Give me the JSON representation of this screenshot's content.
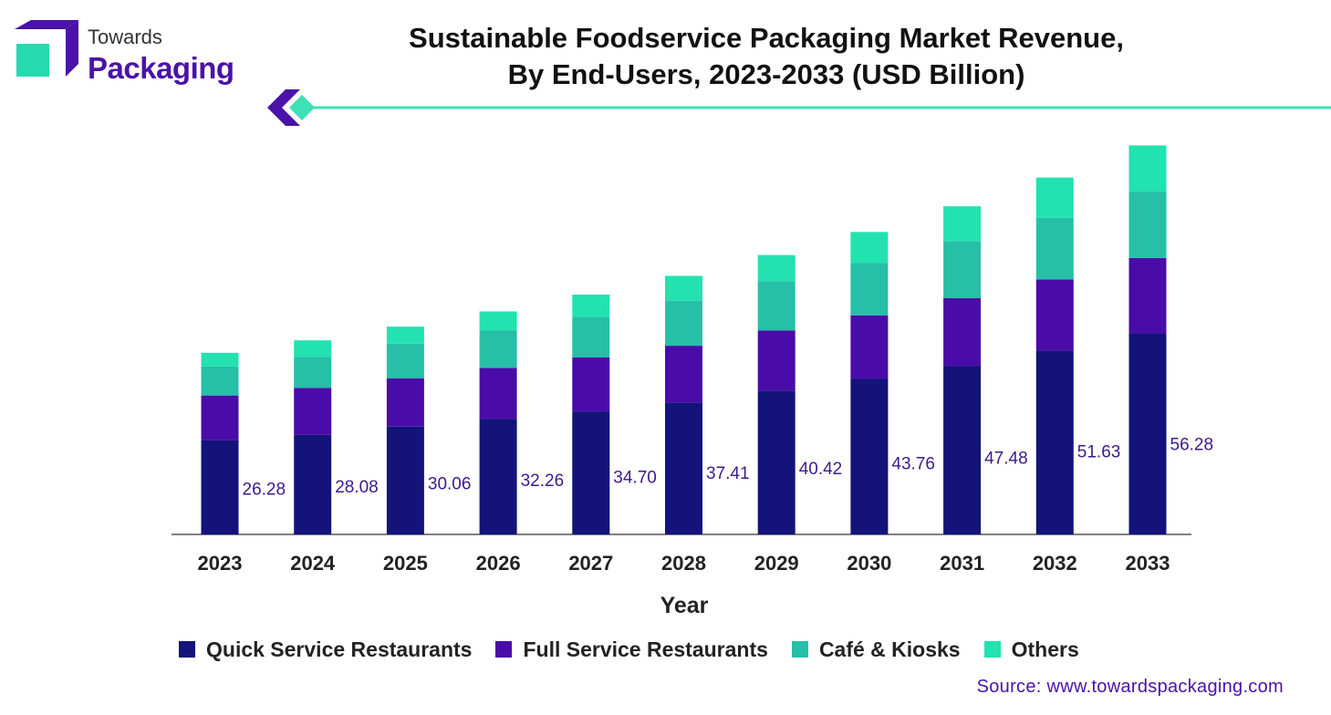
{
  "logo": {
    "line1": "Towards",
    "line2": "Packaging"
  },
  "source": "Source: www.towardspackaging.com",
  "colors": {
    "quick_service": "#13137a",
    "full_service": "#4a0ca8",
    "cafe_kiosks": "#26bfa8",
    "others": "#22e2b0",
    "accent": "#3ee0b6",
    "brand_purple": "#4a12a8"
  },
  "chart_data": {
    "type": "bar",
    "stacked": true,
    "title": "Sustainable Foodservice Packaging Market Revenue, By End-Users, 2023-2033 (USD Billion)",
    "title_lines": [
      "Sustainable Foodservice Packaging Market Revenue,",
      "By End-Users, 2023-2033 (USD Billion)"
    ],
    "xlabel": "Year",
    "ylabel": "",
    "categories": [
      "2023",
      "2024",
      "2025",
      "2026",
      "2027",
      "2028",
      "2029",
      "2030",
      "2031",
      "2032",
      "2033"
    ],
    "totals": [
      26.28,
      28.08,
      30.06,
      32.26,
      34.7,
      37.41,
      40.42,
      43.76,
      47.48,
      51.63,
      56.28
    ],
    "total_labels": [
      "26.28",
      "28.08",
      "30.06",
      "32.26",
      "34.70",
      "37.41",
      "40.42",
      "43.76",
      "47.48",
      "51.63",
      "56.28"
    ],
    "series": [
      {
        "name": "Quick Service Restaurants",
        "color": "#13137a",
        "values": [
          13.6,
          14.4,
          15.6,
          16.7,
          17.8,
          19.1,
          20.8,
          22.5,
          24.4,
          26.6,
          29.1
        ]
      },
      {
        "name": "Full Service Restaurants",
        "color": "#4a0ca8",
        "values": [
          6.5,
          6.8,
          7.0,
          7.4,
          7.8,
          8.2,
          8.7,
          9.2,
          9.8,
          10.3,
          10.9
        ]
      },
      {
        "name": "Café & Kiosks",
        "color": "#26bfa8",
        "values": [
          4.2,
          4.5,
          5.0,
          5.4,
          5.9,
          6.5,
          7.1,
          7.6,
          8.2,
          8.9,
          9.6
        ]
      },
      {
        "name": "Others",
        "color": "#22e2b0",
        "values": [
          1.98,
          2.38,
          2.46,
          2.76,
          3.2,
          3.61,
          3.82,
          4.46,
          5.08,
          5.83,
          6.68
        ]
      }
    ],
    "ylim": [
      0,
      57
    ],
    "grid": false,
    "legend_position": "bottom"
  }
}
